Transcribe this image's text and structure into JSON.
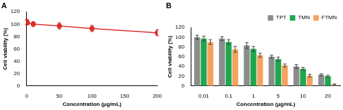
{
  "chart_data": [
    {
      "type": "line",
      "title": "A",
      "x": [
        0.01,
        0.1,
        1,
        10,
        50,
        100,
        200
      ],
      "values": [
        104,
        103,
        102,
        100,
        97,
        93,
        86
      ],
      "errors": [
        4,
        3,
        3,
        4,
        5,
        5,
        5
      ],
      "color": "#d9302c",
      "marker": "circle",
      "line_style": "solid",
      "x_label": "Concentration (μg/mL)",
      "y_label": "Cell viability (%)",
      "xlim": [
        0,
        200
      ],
      "xticks": [
        0,
        50,
        100,
        150,
        200
      ],
      "ylim": [
        0,
        120
      ],
      "yticks": [
        0,
        20,
        40,
        60,
        80,
        100,
        120
      ],
      "grid": false
    },
    {
      "type": "bar",
      "title": "B",
      "categories": [
        "0.01",
        "0.1",
        "1",
        "5",
        "10",
        "20"
      ],
      "series": [
        {
          "name": "TPT",
          "color": "#8c8c8c",
          "values": [
            100,
            97,
            83,
            60,
            40,
            23
          ],
          "errors": [
            4,
            4,
            6,
            3,
            4,
            2
          ]
        },
        {
          "name": "TMN",
          "color": "#1fa64f",
          "values": [
            97,
            90,
            76,
            55,
            35,
            20
          ],
          "errors": [
            5,
            5,
            5,
            4,
            3,
            2
          ]
        },
        {
          "name": "FTMN",
          "color": "#f4a25e",
          "values": [
            90,
            75,
            63,
            42,
            21,
            3
          ],
          "errors": [
            5,
            6,
            4,
            3,
            3,
            1
          ]
        }
      ],
      "x_label": "Concentration (μg/mL)",
      "y_label": "Cell viability (%)",
      "ylim": [
        0,
        120
      ],
      "yticks": [
        0,
        20,
        40,
        60,
        80,
        100,
        120
      ],
      "legend": "top",
      "grid": false
    }
  ]
}
